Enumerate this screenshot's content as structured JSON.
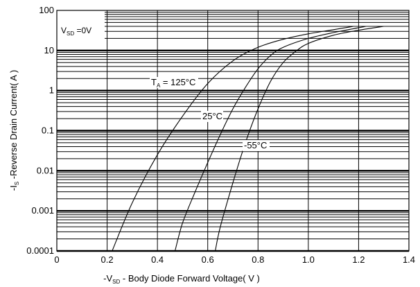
{
  "chart_data": {
    "type": "line",
    "title": "",
    "xlabel": "-VSD - Body Diode Forward Voltage( V )",
    "xlabel_parts": {
      "prefix": "-V",
      "sub": "SD",
      "rest": " - Body Diode Forward Voltage( V )"
    },
    "ylabel": "-IS -Reverse Drain Current( A )",
    "ylabel_parts": {
      "prefix": "-I",
      "sub": "S",
      "rest": " -Reverse Drain Current( A )"
    },
    "xlim": [
      0,
      1.4
    ],
    "ylim": [
      0.0001,
      100
    ],
    "y_scale": "log",
    "grid": true,
    "x_ticks": [
      "0",
      "0.2",
      "0.4",
      "0.6",
      "0.8",
      "1.0",
      "1.2",
      "1.4"
    ],
    "y_ticks": [
      "0.0001",
      "0.001",
      "0.01",
      "0.1",
      "1",
      "10",
      "100"
    ],
    "condition": {
      "prefix": "V",
      "sub": "SD",
      "rest": " =0V"
    },
    "series": [
      {
        "name": "TA = 125°C",
        "label_parts": {
          "prefix": "T",
          "sub": "A",
          "rest": " = 125°C"
        },
        "x": [
          0.22,
          0.3,
          0.4,
          0.5,
          0.6,
          0.7,
          0.8,
          0.9,
          1.0,
          1.1,
          1.18
        ],
        "y": [
          0.0001,
          0.0016,
          0.025,
          0.23,
          1.5,
          5.5,
          12,
          19,
          26,
          33,
          40
        ]
      },
      {
        "name": "25°C",
        "label_parts": {
          "prefix": "",
          "sub": "",
          "rest": "25°C"
        },
        "x": [
          0.47,
          0.5,
          0.55,
          0.6,
          0.65,
          0.7,
          0.75,
          0.8,
          0.85,
          0.9,
          1.0,
          1.1,
          1.23
        ],
        "y": [
          0.0001,
          0.0005,
          0.003,
          0.016,
          0.08,
          0.35,
          1.2,
          3.5,
          7.5,
          12,
          20,
          28,
          40
        ]
      },
      {
        "name": "-55°C",
        "label_parts": {
          "prefix": "",
          "sub": "",
          "rest": "-55°C"
        },
        "x": [
          0.63,
          0.65,
          0.7,
          0.75,
          0.8,
          0.85,
          0.9,
          0.95,
          1.0,
          1.1,
          1.2,
          1.3
        ],
        "y": [
          0.0001,
          0.0004,
          0.005,
          0.05,
          0.35,
          1.7,
          5,
          9.5,
          15,
          24,
          32,
          40
        ]
      }
    ],
    "colors": {
      "line": "#000000",
      "grid": "#000000",
      "background": "#ffffff"
    }
  }
}
